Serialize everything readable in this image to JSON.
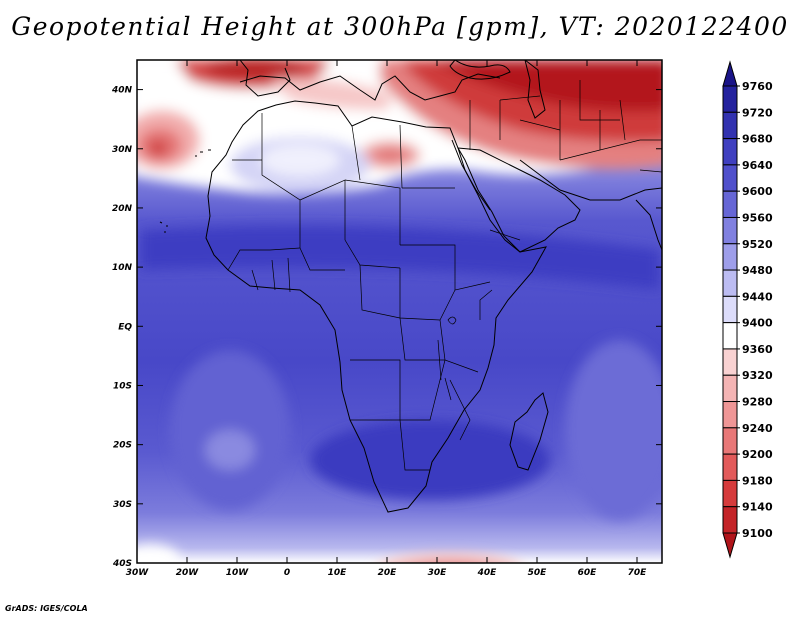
{
  "title": "Geopotential Height at 300hPa [gpm], VT: 2020122400",
  "footer": "GrADS: IGES/COLA",
  "chart_data": {
    "type": "heatmap",
    "variable": "Geopotential Height",
    "level": "300hPa",
    "units": "gpm",
    "valid_time": "2020122400",
    "lon_range": [
      -30,
      75
    ],
    "lat_range": [
      -40,
      45
    ],
    "lon_ticks": [
      "30W",
      "20W",
      "10W",
      "0",
      "10E",
      "20E",
      "30E",
      "40E",
      "50E",
      "60E",
      "70E"
    ],
    "lon_values": [
      -30,
      -20,
      -10,
      0,
      10,
      20,
      30,
      40,
      50,
      60,
      70
    ],
    "lat_ticks": [
      "40S",
      "30S",
      "20S",
      "10S",
      "EQ",
      "10N",
      "20N",
      "30N",
      "40N"
    ],
    "lat_values": [
      -40,
      -30,
      -20,
      -10,
      0,
      10,
      20,
      30,
      40
    ],
    "colorbar": {
      "levels": [
        9100,
        9140,
        9180,
        9200,
        9240,
        9280,
        9320,
        9360,
        9400,
        9440,
        9480,
        9520,
        9560,
        9600,
        9640,
        9680,
        9720,
        9760
      ],
      "colors": [
        "#b0141a",
        "#c42428",
        "#d63b3c",
        "#e25a5a",
        "#e97878",
        "#ef9696",
        "#f4b4b4",
        "#f9d2d2",
        "#ffffff",
        "#dcdcfa",
        "#bcbcf2",
        "#9e9eea",
        "#8080e0",
        "#6666d6",
        "#5050cc",
        "#4040c0",
        "#3232b0",
        "#24229e",
        "#1a1488"
      ],
      "label_order": "descending"
    }
  }
}
